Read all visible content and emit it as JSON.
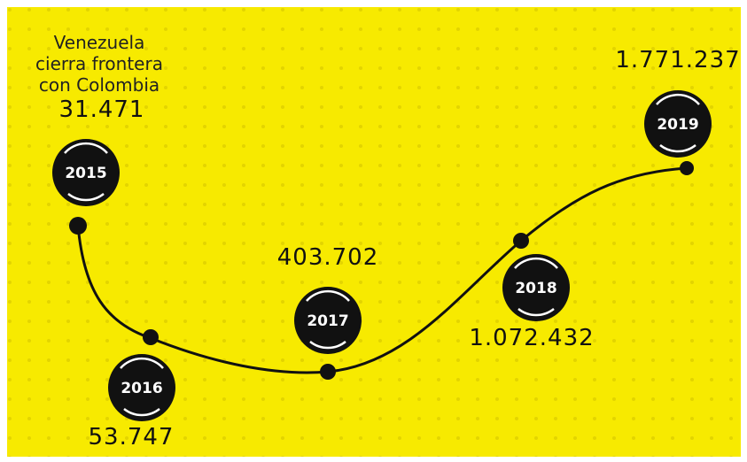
{
  "annotation": {
    "lines": [
      "Venezuela",
      "cierra frontera",
      "con Colombia"
    ]
  },
  "nodes": [
    {
      "year": "2015",
      "value": "31.471"
    },
    {
      "year": "2016",
      "value": "53.747"
    },
    {
      "year": "2017",
      "value": "403.702"
    },
    {
      "year": "2018",
      "value": "1.072.432"
    },
    {
      "year": "2019",
      "value": "1.771.237"
    }
  ]
}
